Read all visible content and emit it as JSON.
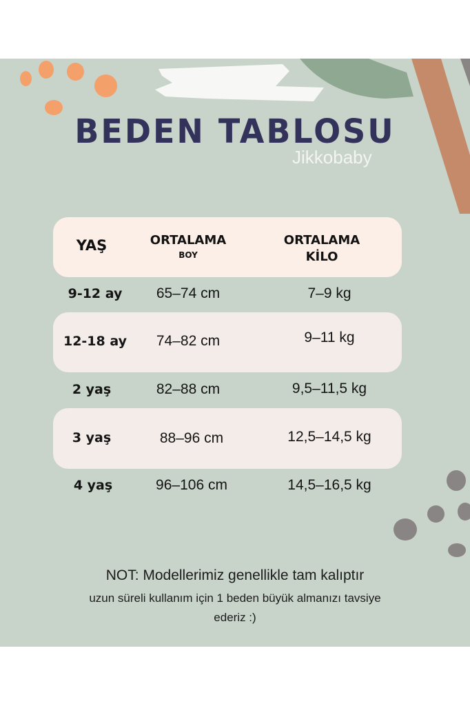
{
  "title": "BEDEN TABLOSU",
  "brand": "Jikkobaby",
  "colors": {
    "background": "#c8d4ca",
    "header_row": "#fbefe7",
    "alt_row": "#f3ece8",
    "title": "#33325a",
    "accent_dots": "#f4a06a"
  },
  "table": {
    "headers": {
      "age": "YAŞ",
      "height_line1": "ORTALAMA",
      "height_line2": "BOY",
      "weight_line1": "ORTALAMA",
      "weight_line2": "KİLO"
    },
    "rows": [
      {
        "age": "9-12 ay",
        "height": "65–74 cm",
        "weight": "7–9 kg"
      },
      {
        "age": "12-18 ay",
        "height": "74–82 cm",
        "weight": "9–11 kg"
      },
      {
        "age": "2 yaş",
        "height": "82–88 cm",
        "weight": "9,5–11,5 kg"
      },
      {
        "age": "3 yaş",
        "height": "88–96 cm",
        "weight": "12,5–14,5 kg"
      },
      {
        "age": "4 yaş",
        "height": "96–106 cm",
        "weight": "14,5–16,5 kg"
      }
    ]
  },
  "note": {
    "line1": "NOT: Modellerimiz genellikle tam kalıptır",
    "line2": "uzun süreli kullanım için 1 beden büyük almanızı tavsiye",
    "line3": "ederiz :)"
  }
}
